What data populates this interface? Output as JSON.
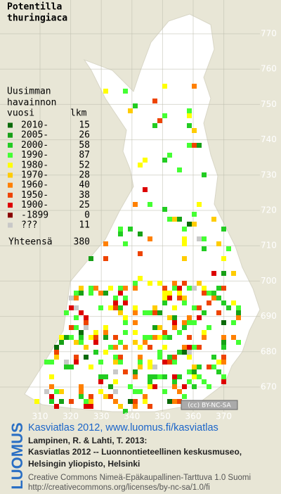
{
  "title": [
    "Potentilla",
    "thuringiaca"
  ],
  "legend": {
    "heading": [
      "Uusimman",
      "havainnon",
      "vuosi"
    ],
    "count_heading": "lkm",
    "rows": [
      {
        "label": "2010-",
        "count": 15,
        "color": "#0a6a0a"
      },
      {
        "label": "2005-",
        "count": 26,
        "color": "#17a017"
      },
      {
        "label": "2000-",
        "count": 58,
        "color": "#22cc22"
      },
      {
        "label": "1990-",
        "count": 87,
        "color": "#44ff33"
      },
      {
        "label": "1980-",
        "count": 52,
        "color": "#ffff00"
      },
      {
        "label": "1970-",
        "count": 28,
        "color": "#ffcc00"
      },
      {
        "label": "1960-",
        "count": 40,
        "color": "#ff8000"
      },
      {
        "label": "1950-",
        "count": 38,
        "color": "#ee4400"
      },
      {
        "label": "1900-",
        "count": 25,
        "color": "#dd0000"
      },
      {
        "label": "-1899",
        "count": 0,
        "color": "#880000"
      },
      {
        "label": "???",
        "count": 11,
        "color": "#c8c8c8"
      }
    ],
    "total": {
      "label": "Yhteensä",
      "count": 380
    }
  },
  "map": {
    "x_labels": [
      310,
      320,
      330,
      340,
      350,
      360,
      370
    ],
    "y_labels": [
      770,
      760,
      750,
      740,
      730,
      720,
      710,
      700,
      690,
      680,
      670
    ],
    "license_badge": "(cc) BY-NC-SA"
  },
  "side_logo": "LUOMUS",
  "footer": {
    "link": "Kasviatlas 2012, www.luomus.fi/kasviatlas",
    "citation": [
      "Lampinen, R. & Lahti, T. 2013:",
      "Kasviatlas 2012 -- Luonnontieteellinen keskusmuseo,",
      "Helsingin yliopisto, Helsinki"
    ],
    "license": [
      "Creative Commons Nimeä-Epäkaupallinen-Tarttuva 1.0 Suomi",
      "http://creativecommons.org/licenses/by-nc-sa/1.0/fi"
    ]
  }
}
